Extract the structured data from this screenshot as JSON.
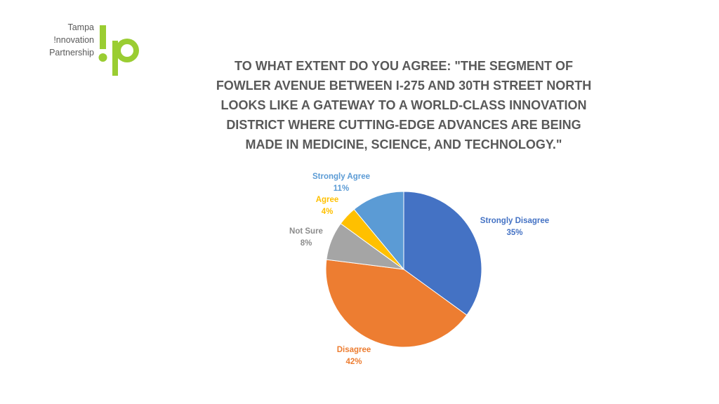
{
  "logo": {
    "lines": [
      "Tampa",
      "!nnovation",
      "Partnership"
    ],
    "mark_text": "!p",
    "color": "#9acd32"
  },
  "chart_data": {
    "type": "pie",
    "title": "TO WHAT EXTENT DO YOU AGREE: \"THE SEGMENT OF FOWLER AVENUE BETWEEN I-275 AND 30TH STREET NORTH LOOKS LIKE A GATEWAY TO A WORLD-CLASS INNOVATION DISTRICT WHERE CUTTING-EDGE ADVANCES ARE BEING MADE IN MEDICINE, SCIENCE, AND TECHNOLOGY.\"",
    "slices": [
      {
        "label": "Strongly Disagree",
        "value": 35,
        "display": "35%",
        "color": "#4472c4"
      },
      {
        "label": "Disagree",
        "value": 42,
        "display": "42%",
        "color": "#ed7d31"
      },
      {
        "label": "Not Sure",
        "value": 8,
        "display": "8%",
        "color": "#a5a5a5"
      },
      {
        "label": "Agree",
        "value": 4,
        "display": "4%",
        "color": "#ffc000"
      },
      {
        "label": "Strongly Agree",
        "value": 11,
        "display": "11%",
        "color": "#5b9bd5"
      }
    ]
  }
}
